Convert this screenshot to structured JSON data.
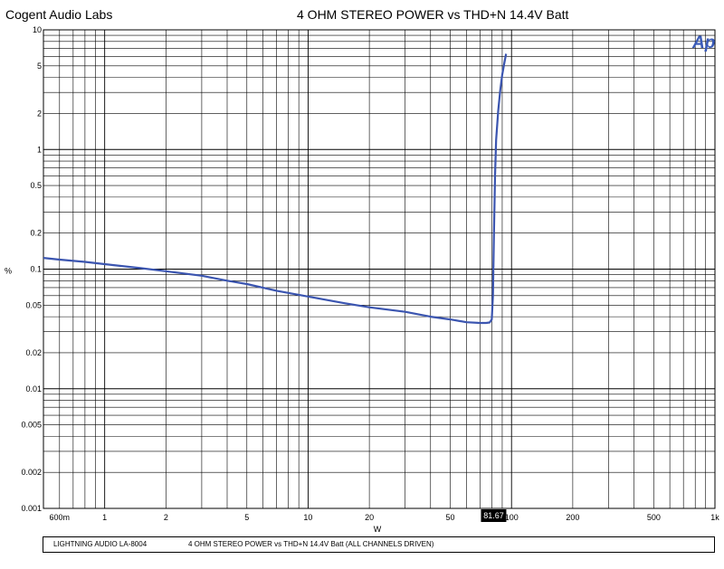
{
  "header": {
    "company": "Cogent Audio Labs",
    "title": "4 OHM STEREO POWER vs THD+N   14.4V Batt"
  },
  "logo": {
    "text": "Ap",
    "color": "#3a5bb8"
  },
  "footer": {
    "device": "LIGHTNING AUDIO LA-8004",
    "description": "4 OHM  STEREO POWER  vs THD+N      14.4V Batt   (ALL CHANNELS DRIVEN)"
  },
  "chart_data": {
    "type": "line",
    "title": "4 OHM STEREO POWER vs THD+N   14.4V Batt",
    "xlabel": "W",
    "ylabel": "%",
    "x_scale": "log",
    "y_scale": "log",
    "xlim": [
      0.5,
      1000
    ],
    "ylim": [
      0.001,
      10
    ],
    "grid": true,
    "line_color": "#3b55b0",
    "x_ticks": [
      {
        "value": 0.6,
        "label": "600m"
      },
      {
        "value": 1,
        "label": "1"
      },
      {
        "value": 2,
        "label": "2"
      },
      {
        "value": 5,
        "label": "5"
      },
      {
        "value": 10,
        "label": "10"
      },
      {
        "value": 20,
        "label": "20"
      },
      {
        "value": 50,
        "label": "50"
      },
      {
        "value": 100,
        "label": "100"
      },
      {
        "value": 200,
        "label": "200"
      },
      {
        "value": 500,
        "label": "500"
      },
      {
        "value": 1000,
        "label": "1k"
      }
    ],
    "y_ticks": [
      {
        "value": 10,
        "label": "10"
      },
      {
        "value": 5,
        "label": "5"
      },
      {
        "value": 2,
        "label": "2"
      },
      {
        "value": 1,
        "label": "1"
      },
      {
        "value": 0.5,
        "label": "0.5"
      },
      {
        "value": 0.2,
        "label": "0.2"
      },
      {
        "value": 0.1,
        "label": "0.1"
      },
      {
        "value": 0.05,
        "label": "0.05"
      },
      {
        "value": 0.02,
        "label": "0.02"
      },
      {
        "value": 0.01,
        "label": "0.01"
      },
      {
        "value": 0.005,
        "label": "0.005"
      },
      {
        "value": 0.002,
        "label": "0.002"
      },
      {
        "value": 0.001,
        "label": "0.001"
      }
    ],
    "marker": {
      "x": 81.67,
      "label": "81.67"
    },
    "series": [
      {
        "x": [
          0.5,
          0.6,
          0.8,
          1,
          1.5,
          2,
          3,
          4,
          5,
          7,
          10,
          15,
          20,
          30,
          40,
          50,
          60,
          70,
          75,
          78,
          80,
          81,
          82,
          83,
          84,
          86,
          88,
          90,
          92,
          94
        ],
        "y": [
          0.124,
          0.12,
          0.115,
          0.11,
          0.102,
          0.096,
          0.088,
          0.08,
          0.075,
          0.066,
          0.059,
          0.052,
          0.048,
          0.044,
          0.04,
          0.038,
          0.036,
          0.0355,
          0.0355,
          0.0358,
          0.038,
          0.06,
          0.2,
          0.6,
          1.2,
          2.1,
          3.1,
          4.2,
          5.2,
          6.3
        ]
      }
    ]
  }
}
